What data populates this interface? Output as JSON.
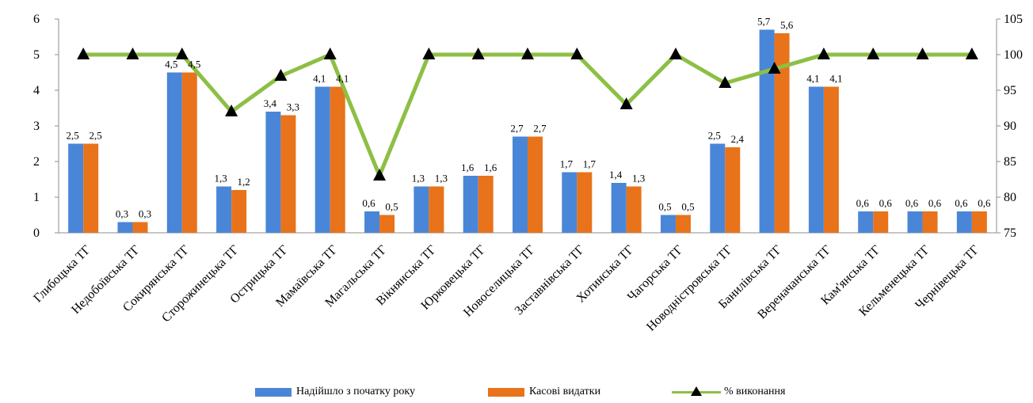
{
  "chart_data": {
    "type": "bar",
    "title": "",
    "xlabel": "",
    "ylabel": "",
    "ylim": [
      0,
      6
    ],
    "y2lim": [
      75,
      105
    ],
    "y_ticks": [
      "0",
      "1",
      "2",
      "3",
      "4",
      "5",
      "6"
    ],
    "y2_ticks": [
      "75",
      "80",
      "85",
      "90",
      "95",
      "100",
      "105"
    ],
    "grid": false,
    "legend_position": "bottom",
    "categories": [
      "Глибоцька ТГ",
      "Недобоївська ТГ",
      "Сокирянська ТГ",
      "Сторожинецька ТГ",
      "Острицька ТГ",
      "Мамаївська ТГ",
      "Магальська ТГ",
      "Вікнянська ТГ",
      "Юрковецька ТГ",
      "Новоселицька ТГ",
      "Заставнівська ТГ",
      "Хотинська ТГ",
      "Чагорська ТГ",
      "Новодністровська ТГ",
      "Банилівська ТГ",
      "Вереначанська ТГ",
      "Кам'янська ТГ",
      "Кельменецька ТГ",
      "Чернівецька ТГ"
    ],
    "series": [
      {
        "name": "Надійшло з початку року",
        "type": "bar",
        "axis": "left",
        "color": "#4a86d8",
        "values": [
          2.5,
          0.3,
          4.5,
          1.3,
          3.4,
          4.1,
          0.6,
          1.3,
          1.6,
          2.7,
          1.7,
          1.4,
          0.5,
          2.5,
          5.7,
          4.1,
          0.6,
          0.6,
          0.6
        ],
        "labels": [
          "2,5",
          "0,3",
          "4,5",
          "1,3",
          "3,4",
          "4,1",
          "0,6",
          "1,3",
          "1,6",
          "2,7",
          "1,7",
          "1,4",
          "0,5",
          "2,5",
          "5,7",
          "4,1",
          "0,6",
          "0,6",
          "0,6"
        ]
      },
      {
        "name": "Касові видатки",
        "type": "bar",
        "axis": "left",
        "color": "#e8731a",
        "values": [
          2.5,
          0.3,
          4.5,
          1.2,
          3.3,
          4.1,
          0.5,
          1.3,
          1.6,
          2.7,
          1.7,
          1.3,
          0.5,
          2.4,
          5.6,
          4.1,
          0.6,
          0.6,
          0.6
        ],
        "labels": [
          "2,5",
          "0,3",
          "4,5",
          "1,2",
          "3,3",
          "4,1",
          "0,5",
          "1,3",
          "1,6",
          "2,7",
          "1,7",
          "1,3",
          "0,5",
          "2,4",
          "5,6",
          "4,1",
          "0,6",
          "0,6",
          "0,6"
        ]
      },
      {
        "name": "% виконання",
        "type": "line",
        "axis": "right",
        "color": "#8dbf44",
        "marker": "triangle",
        "values": [
          100,
          100,
          100,
          92,
          97,
          100,
          83,
          100,
          100,
          100,
          100,
          93,
          100,
          96,
          98,
          100,
          100,
          100,
          100
        ]
      }
    ]
  }
}
